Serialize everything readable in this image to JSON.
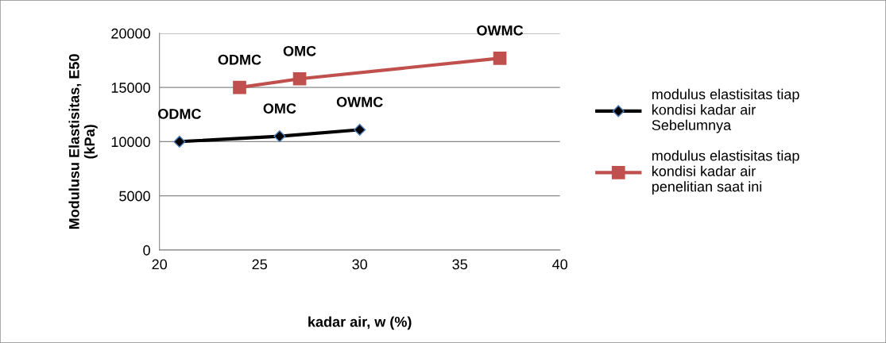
{
  "chart_data": {
    "type": "line",
    "xlabel": "kadar air, w (%)",
    "ylabel": "Modulusu Elastisitas, E50\n(kPa)",
    "series": [
      {
        "name": "modulus elastisitas tiap kondisi kadar air Sebelumnya",
        "color": "#000000",
        "marker": "diamond",
        "x": [
          21,
          26,
          30
        ],
        "values": [
          10000,
          10500,
          11100
        ]
      },
      {
        "name": "modulus elastisitas tiap kondisi kadar air penelitian saat ini",
        "color": "#c0504d",
        "marker": "square",
        "x": [
          24,
          27,
          37
        ],
        "values": [
          15000,
          15800,
          17700
        ]
      }
    ],
    "annotations": [
      {
        "text": "ODMC",
        "x": 21,
        "y": 10000
      },
      {
        "text": "OMC",
        "x": 26,
        "y": 10500
      },
      {
        "text": "OWMC",
        "x": 30,
        "y": 11100
      },
      {
        "text": "ODMC",
        "x": 24,
        "y": 15000
      },
      {
        "text": "OMC",
        "x": 27,
        "y": 15800
      },
      {
        "text": "OWMC",
        "x": 37,
        "y": 17700
      }
    ],
    "xlim": [
      20,
      40
    ],
    "xticks": [
      20,
      25,
      30,
      35,
      40
    ],
    "ylim": [
      0,
      20000
    ],
    "yticks": [
      0,
      5000,
      10000,
      15000,
      20000
    ],
    "grid": "y",
    "legend": "right"
  }
}
